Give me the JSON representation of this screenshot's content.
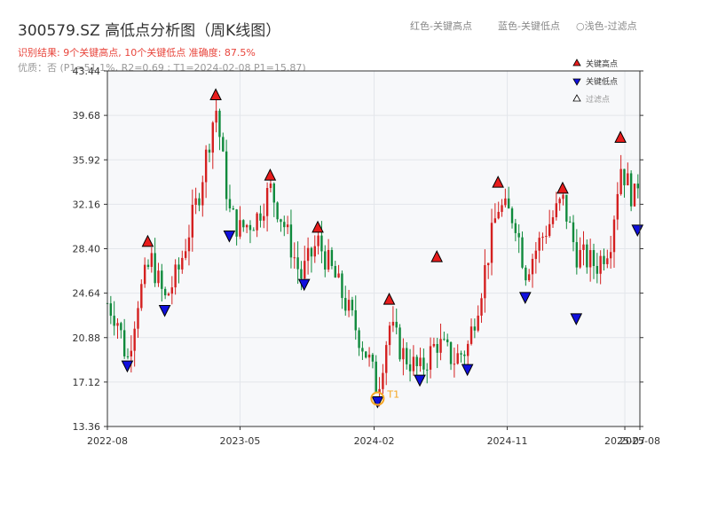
{
  "header": {
    "title": "300579.SZ 高低点分析图（周K线图）",
    "result_text": "识别结果: 9个关键高点, 10个关键低点  准确度: 87.5%",
    "quality_text": "优质：否  (P1=51.1%, R2=0.69 ; T1=2024-02-08 P1=15.87)",
    "hint_red": "红色-关键高点",
    "hint_blue": "蓝色-关键低点",
    "hint_gray": "浅色-过滤点"
  },
  "colors": {
    "up": "#d42020",
    "down": "#0f8a3c",
    "high_marker": "#e81c1c",
    "low_marker": "#1010dd",
    "t1_marker": "#f5a623",
    "plot_bg": "#f7f8fa"
  },
  "legend": {
    "placement": "top-right",
    "items": [
      "关键高点",
      "关键低点",
      "过滤点"
    ]
  },
  "chart_data": {
    "type": "candlestick",
    "y_ticks": [
      "13.36",
      "17.12",
      "20.88",
      "24.64",
      "28.40",
      "32.16",
      "35.92",
      "39.68",
      "43.44"
    ],
    "ylim": [
      13.36,
      43.44
    ],
    "x_ticks": [
      {
        "label": "2022-08",
        "date": "2022-08-01"
      },
      {
        "label": "2023-05",
        "date": "2023-05-01"
      },
      {
        "label": "2024-02",
        "date": "2024-02-01"
      },
      {
        "label": "2024-11",
        "date": "2024-11-01"
      },
      {
        "label": "2025-07",
        "date": "2025-07-01"
      },
      {
        "label": "2025-08",
        "date": "2025-08-01"
      }
    ],
    "xlim": [
      "2022-08-01",
      "2025-08-01"
    ],
    "grid": true,
    "anchors": [
      [
        "2022-08-01",
        23.8
      ],
      [
        "2022-08-21",
        22.5
      ],
      [
        "2022-09-11",
        18.9
      ],
      [
        "2022-10-02",
        24.0
      ],
      [
        "2022-10-30",
        27.5
      ],
      [
        "2022-11-27",
        24.0
      ],
      [
        "2022-12-25",
        26.5
      ],
      [
        "2023-02-05",
        33.0
      ],
      [
        "2023-03-12",
        40.5
      ],
      [
        "2023-04-09",
        31.5
      ],
      [
        "2023-04-30",
        30.0
      ],
      [
        "2023-06-04",
        31.0
      ],
      [
        "2023-07-02",
        33.5
      ],
      [
        "2023-07-30",
        30.5
      ],
      [
        "2023-09-03",
        26.0
      ],
      [
        "2023-10-08",
        29.0
      ],
      [
        "2023-11-12",
        26.0
      ],
      [
        "2023-12-17",
        22.5
      ],
      [
        "2024-01-21",
        19.0
      ],
      [
        "2024-02-08",
        16.5
      ],
      [
        "2024-03-03",
        22.0
      ],
      [
        "2024-03-31",
        19.5
      ],
      [
        "2024-05-05",
        18.0
      ],
      [
        "2024-06-09",
        20.5
      ],
      [
        "2024-07-14",
        19.0
      ],
      [
        "2024-08-11",
        20.0
      ],
      [
        "2024-09-08",
        25.0
      ],
      [
        "2024-10-13",
        32.0
      ],
      [
        "2024-11-17",
        31.0
      ],
      [
        "2024-12-08",
        26.5
      ],
      [
        "2025-01-19",
        30.0
      ],
      [
        "2025-02-23",
        32.5
      ],
      [
        "2025-03-23",
        28.0
      ],
      [
        "2025-05-04",
        27.0
      ],
      [
        "2025-06-01",
        29.0
      ],
      [
        "2025-06-22",
        35.5
      ],
      [
        "2025-07-20",
        32.5
      ],
      [
        "2025-08-01",
        35.0
      ]
    ],
    "highs": [
      {
        "date": "2022-10-23",
        "value": 28.6
      },
      {
        "date": "2023-03-12",
        "value": 41.0
      },
      {
        "date": "2023-07-02",
        "value": 34.2
      },
      {
        "date": "2023-10-08",
        "value": 29.8
      },
      {
        "date": "2024-03-03",
        "value": 23.7
      },
      {
        "date": "2024-06-09",
        "value": 27.3
      },
      {
        "date": "2024-10-13",
        "value": 33.6
      },
      {
        "date": "2025-02-23",
        "value": 33.1
      },
      {
        "date": "2025-06-22",
        "value": 37.4
      }
    ],
    "lows": [
      {
        "date": "2022-09-11",
        "value": 18.9
      },
      {
        "date": "2022-11-27",
        "value": 23.6
      },
      {
        "date": "2023-04-09",
        "value": 29.9
      },
      {
        "date": "2023-09-10",
        "value": 25.8
      },
      {
        "date": "2024-02-08",
        "value": 15.87
      },
      {
        "date": "2024-05-05",
        "value": 17.7
      },
      {
        "date": "2024-08-11",
        "value": 18.6
      },
      {
        "date": "2024-12-08",
        "value": 24.7
      },
      {
        "date": "2025-03-23",
        "value": 22.9
      },
      {
        "date": "2025-07-27",
        "value": 30.4
      }
    ],
    "t1": {
      "label": "T1",
      "date": "2024-02-08",
      "value": 15.87
    }
  }
}
